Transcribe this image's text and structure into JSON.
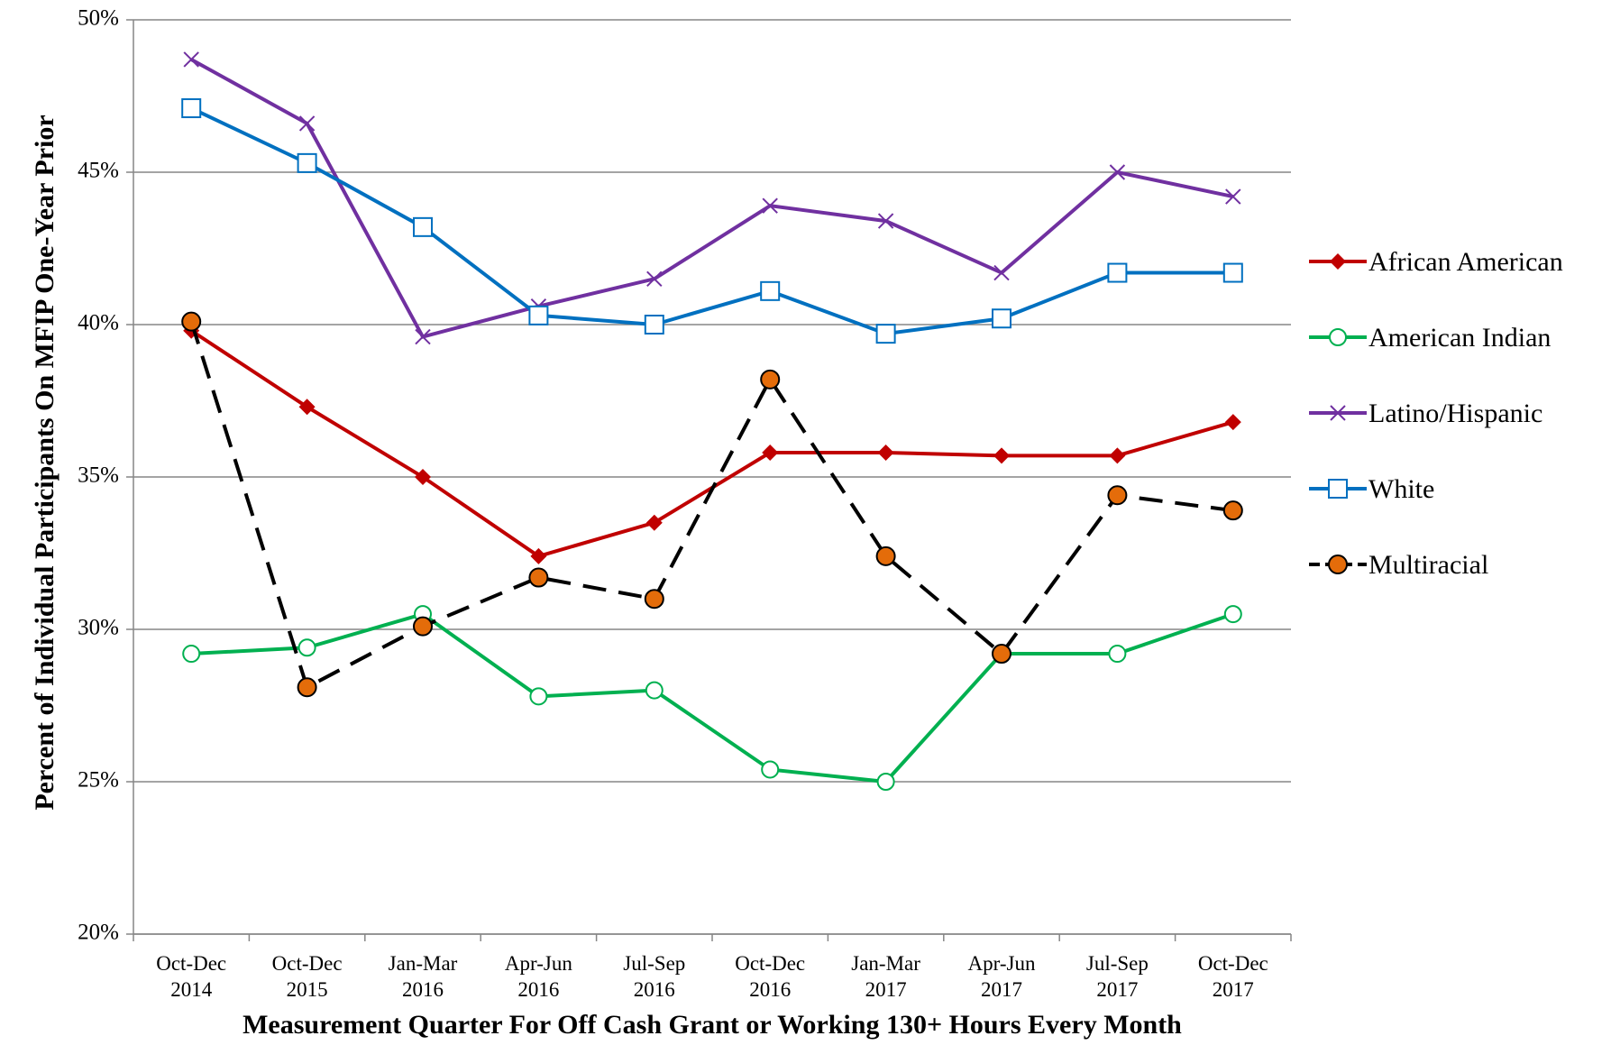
{
  "chart_data": {
    "type": "line",
    "x_label": "Measurement Quarter For Off Cash Grant or Working 130+ Hours Every Month",
    "y_label": "Percent of Individual Participants On MFIP One-Year Prior",
    "categories": [
      "Oct-Dec 2014",
      "Oct-Dec 2015",
      "Jan-Mar 2016",
      "Apr-Jun 2016",
      "Jul-Sep 2016",
      "Oct-Dec 2016",
      "Jan-Mar 2017",
      "Apr-Jun 2017",
      "Jul-Sep 2017",
      "Oct-Dec 2017"
    ],
    "ylim": [
      20,
      50
    ],
    "yticks": [
      {
        "value": 20,
        "label": "20%"
      },
      {
        "value": 25,
        "label": "25%"
      },
      {
        "value": 30,
        "label": "30%"
      },
      {
        "value": 35,
        "label": "35%"
      },
      {
        "value": 40,
        "label": "40%"
      },
      {
        "value": 45,
        "label": "45%"
      },
      {
        "value": 50,
        "label": "50%"
      }
    ],
    "grid": true,
    "legend": "right",
    "series": [
      {
        "name": "African American",
        "color": "#c00000",
        "marker": "diamond",
        "dash": false,
        "values": [
          39.8,
          37.3,
          35.0,
          32.4,
          33.5,
          35.8,
          35.8,
          35.7,
          35.7,
          36.8
        ]
      },
      {
        "name": "American Indian",
        "color": "#00b050",
        "marker": "open-circle",
        "dash": false,
        "values": [
          29.2,
          29.4,
          30.5,
          27.8,
          28.0,
          25.4,
          25.0,
          29.2,
          29.2,
          30.5
        ]
      },
      {
        "name": "Latino/Hispanic",
        "color": "#7030a0",
        "marker": "x",
        "dash": false,
        "values": [
          48.7,
          46.6,
          39.6,
          40.6,
          41.5,
          43.9,
          43.4,
          41.7,
          45.0,
          44.2
        ]
      },
      {
        "name": "White",
        "color": "#0070c0",
        "marker": "open-square",
        "dash": false,
        "values": [
          47.1,
          45.3,
          43.2,
          40.3,
          40.0,
          41.1,
          39.7,
          40.2,
          41.7,
          41.7
        ]
      },
      {
        "name": "Multiracial",
        "color": "#000000",
        "fill": "#e46c0a",
        "marker": "circle",
        "dash": true,
        "values": [
          40.1,
          28.1,
          30.1,
          31.7,
          31.0,
          38.2,
          32.4,
          29.2,
          34.4,
          33.9
        ]
      }
    ]
  }
}
